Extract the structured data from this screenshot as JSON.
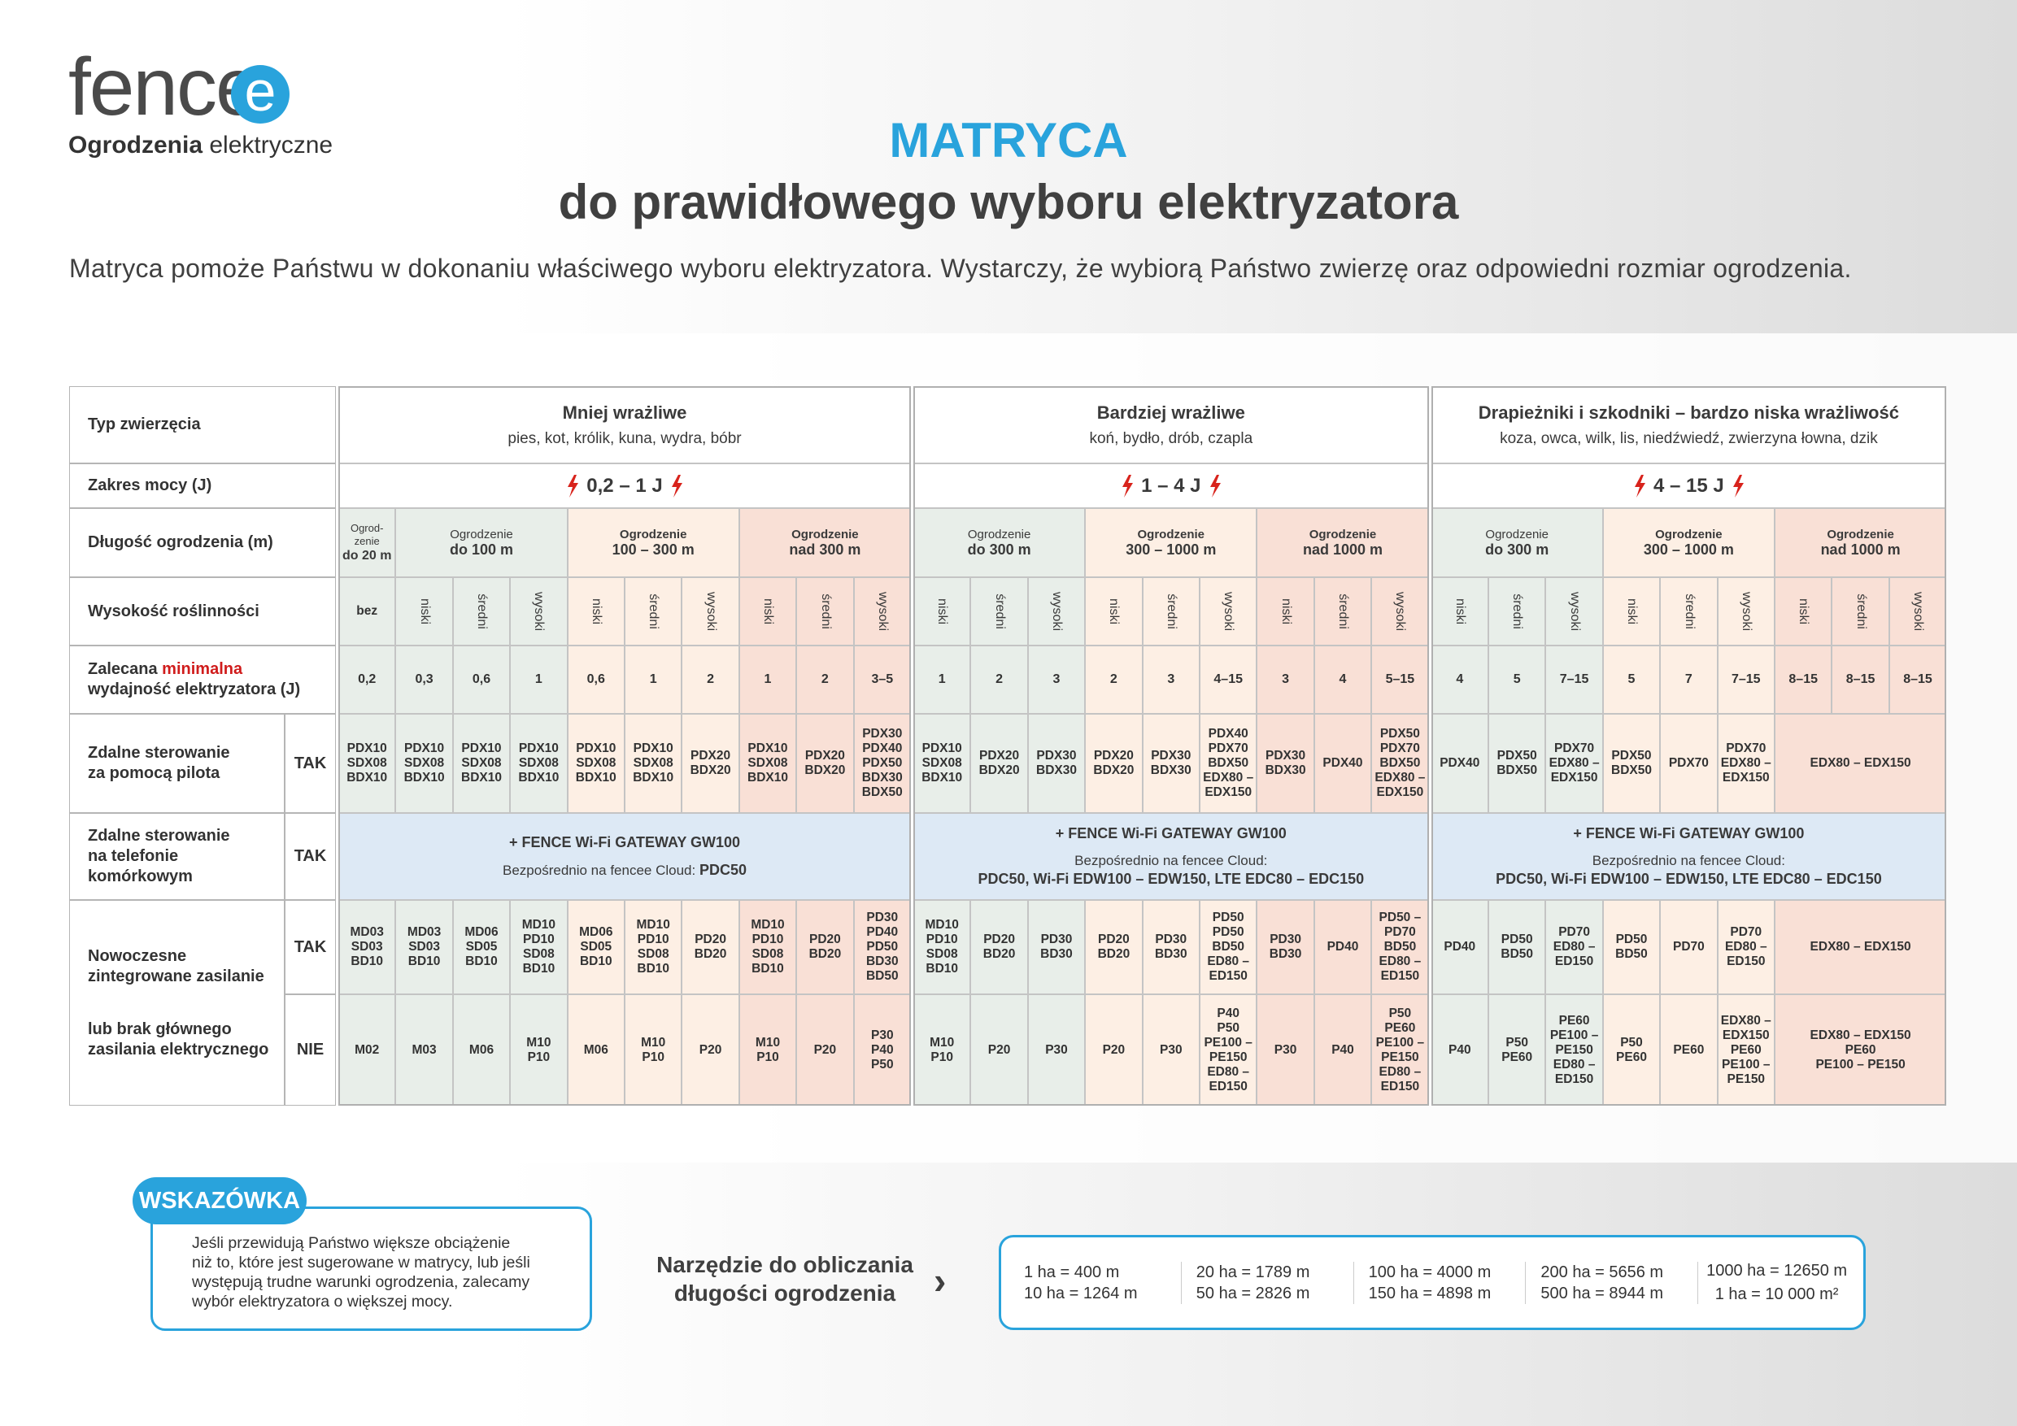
{
  "header": {
    "logo": "fence",
    "logo_mark": "e",
    "tagline_bold": "Ogrodzenia",
    "tagline": "elektryczne",
    "title": "MATRYCA",
    "subtitle": "do prawidłowego wyboru elektryzatora",
    "intro": "Matryca pomoże Państwu w dokonaniu właściwego wyboru elektryzatora. Wystarczy, że wybiorą Państwo zwierzę oraz odpowiedni rozmiar ogrodzenia."
  },
  "table": {
    "row_labels": {
      "animal": "Typ zwierzęcia",
      "power": "Zakres mocy (J)",
      "length": "Długość ogrodzenia (m)",
      "vegetation": "Wysokość roślinności",
      "min_output": {
        "before": "Zalecana",
        "highlight": "minimalna",
        "after": "wydajność elektryzatora (J)"
      },
      "remote": [
        "Zdalne sterowanie",
        "za pomocą pilota"
      ],
      "phone": [
        "Zdalne sterowanie",
        "na telefonie",
        "komórkowym"
      ],
      "mains": [
        "Nowoczesne",
        "zintegrowane zasilanie"
      ],
      "mains_alt": [
        "lub brak głównego",
        "zasilania elektrycznego"
      ],
      "yes": "TAK",
      "no": "NIE"
    },
    "groups": [
      {
        "name": "Mniej wrażliwe",
        "animals": "pies, kot, królik, kuna, wydra, bóbr",
        "power": "0,2 – 1 J",
        "lengths": [
          {
            "label": "Ogrod-zenie",
            "range": "do 20 m",
            "heights": [
              "bez"
            ]
          },
          {
            "label": "Ogrodzenie",
            "range": "do 100 m",
            "heights": [
              "niski",
              "średni",
              "wysoki"
            ]
          },
          {
            "label": "Ogrodzenie",
            "range": "100 – 300 m",
            "heights": [
              "niski",
              "średni",
              "wysoki"
            ]
          },
          {
            "label": "Ogrodzenie",
            "range": "nad 300 m",
            "heights": [
              "niski",
              "średni",
              "wysoki"
            ]
          }
        ],
        "min_output": [
          "0,2",
          "0,3",
          "0,6",
          "1",
          "0,6",
          "1",
          "2",
          "1",
          "2",
          "3–5"
        ],
        "remote": [
          [
            "PDX10",
            "SDX08",
            "BDX10"
          ],
          [
            "PDX10",
            "SDX08",
            "BDX10"
          ],
          [
            "PDX10",
            "SDX08",
            "BDX10"
          ],
          [
            "PDX10",
            "SDX08",
            "BDX10"
          ],
          [
            "PDX10",
            "SDX08",
            "BDX10"
          ],
          [
            "PDX10",
            "SDX08",
            "BDX10"
          ],
          [
            "PDX20",
            "BDX20"
          ],
          [
            "PDX10",
            "SDX08",
            "BDX10"
          ],
          [
            "PDX20",
            "BDX20"
          ],
          [
            "PDX30",
            "PDX40",
            "PDX50",
            "BDX30",
            "BDX50"
          ]
        ],
        "wifi": {
          "title": "+ FENCE Wi-Fi GATEWAY GW100",
          "note": "Bezpośrednio na fencee Cloud:",
          "models": "PDC50"
        },
        "mains_yes": [
          [
            "MD03",
            "SD03",
            "BD10"
          ],
          [
            "MD03",
            "SD03",
            "BD10"
          ],
          [
            "MD06",
            "SD05",
            "BD10"
          ],
          [
            "MD10",
            "PD10",
            "SD08",
            "BD10"
          ],
          [
            "MD06",
            "SD05",
            "BD10"
          ],
          [
            "MD10",
            "PD10",
            "SD08",
            "BD10"
          ],
          [
            "PD20",
            "BD20"
          ],
          [
            "MD10",
            "PD10",
            "SD08",
            "BD10"
          ],
          [
            "PD20",
            "BD20"
          ],
          [
            "PD30",
            "PD40",
            "PD50",
            "BD30",
            "BD50"
          ]
        ],
        "mains_no": [
          [
            "M02"
          ],
          [
            "M03"
          ],
          [
            "M06"
          ],
          [
            "M10",
            "P10"
          ],
          [
            "M06"
          ],
          [
            "M10",
            "P10"
          ],
          [
            "P20"
          ],
          [
            "M10",
            "P10"
          ],
          [
            "P20"
          ],
          [
            "P30",
            "P40",
            "P50"
          ]
        ]
      },
      {
        "name": "Bardziej wrażliwe",
        "animals": "koń, bydło, drób, czapla",
        "power": "1 – 4 J",
        "lengths": [
          {
            "label": "Ogrodzenie",
            "range": "do 300 m",
            "heights": [
              "niski",
              "średni",
              "wysoki"
            ]
          },
          {
            "label": "Ogrodzenie",
            "range": "300 – 1000 m",
            "heights": [
              "niski",
              "średni",
              "wysoki"
            ]
          },
          {
            "label": "Ogrodzenie",
            "range": "nad 1000 m",
            "heights": [
              "niski",
              "średni",
              "wysoki"
            ]
          }
        ],
        "min_output": [
          "1",
          "2",
          "3",
          "2",
          "3",
          "4–15",
          "3",
          "4",
          "5–15"
        ],
        "remote": [
          [
            "PDX10",
            "SDX08",
            "BDX10"
          ],
          [
            "PDX20",
            "BDX20"
          ],
          [
            "PDX30",
            "BDX30"
          ],
          [
            "PDX20",
            "BDX20"
          ],
          [
            "PDX30",
            "BDX30"
          ],
          [
            "PDX40",
            "PDX70",
            "BDX50",
            "EDX80 – EDX150"
          ],
          [
            "PDX30",
            "BDX30"
          ],
          [
            "PDX40"
          ],
          [
            "PDX50",
            "PDX70",
            "BDX50",
            "EDX80 – EDX150"
          ]
        ],
        "wifi": {
          "title": "+ FENCE Wi-Fi GATEWAY GW100",
          "note": "Bezpośrednio na fencee Cloud:",
          "models": "PDC50, Wi-Fi EDW100 – EDW150, LTE EDC80 – EDC150"
        },
        "mains_yes": [
          [
            "MD10",
            "PD10",
            "SD08",
            "BD10"
          ],
          [
            "PD20",
            "BD20"
          ],
          [
            "PD30",
            "BD30"
          ],
          [
            "PD20",
            "BD20"
          ],
          [
            "PD30",
            "BD30"
          ],
          [
            "PD50",
            "PD50",
            "BD50",
            "ED80 – ED150"
          ],
          [
            "PD30",
            "BD30"
          ],
          [
            "PD40"
          ],
          [
            "PD50 – PD70",
            "BD50",
            "ED80 – ED150"
          ]
        ],
        "mains_no": [
          [
            "M10",
            "P10"
          ],
          [
            "P20"
          ],
          [
            "P30"
          ],
          [
            "P20"
          ],
          [
            "P30"
          ],
          [
            "P40",
            "P50",
            "PE100 – PE150",
            "ED80 – ED150"
          ],
          [
            "P30"
          ],
          [
            "P40"
          ],
          [
            "P50",
            "PE60",
            "PE100 – PE150",
            "ED80 – ED150"
          ]
        ]
      },
      {
        "name": "Drapieżniki i szkodniki – bardzo niska wrażliwość",
        "animals": "koza, owca, wilk, lis, niedźwiedź, zwierzyna łowna, dzik",
        "power": "4 – 15 J",
        "lengths": [
          {
            "label": "Ogrodzenie",
            "range": "do 300 m",
            "heights": [
              "niski",
              "średni",
              "wysoki"
            ]
          },
          {
            "label": "Ogrodzenie",
            "range": "300 – 1000 m",
            "heights": [
              "niski",
              "średni",
              "wysoki"
            ]
          },
          {
            "label": "Ogrodzenie",
            "range": "nad 1000 m",
            "heights": [
              "niski",
              "średni",
              "wysoki"
            ]
          }
        ],
        "min_output": [
          "4",
          "5",
          "7–15",
          "5",
          "7",
          "7–15",
          "8–15",
          "8–15",
          "8–15"
        ],
        "remote": [
          [
            "PDX40"
          ],
          [
            "PDX50",
            "BDX50"
          ],
          [
            "PDX70",
            "EDX80 – EDX150"
          ],
          [
            "PDX50",
            "BDX50"
          ],
          [
            "PDX70"
          ],
          [
            "PDX70",
            "EDX80 – EDX150"
          ],
          [
            "EDX80 – EDX150"
          ]
        ],
        "wifi": {
          "title": "+ FENCE Wi-Fi GATEWAY GW100",
          "note": "Bezpośrednio na fencee Cloud:",
          "models": "PDC50, Wi-Fi EDW100 – EDW150, LTE EDC80 – EDC150"
        },
        "mains_yes": [
          [
            "PD40"
          ],
          [
            "PD50",
            "BD50"
          ],
          [
            "PD70",
            "ED80 – ED150"
          ],
          [
            "PD50",
            "BD50"
          ],
          [
            "PD70"
          ],
          [
            "PD70",
            "ED80 – ED150"
          ],
          [
            "EDX80 – EDX150"
          ]
        ],
        "mains_no": [
          [
            "P40"
          ],
          [
            "P50",
            "PE60"
          ],
          [
            "PE60",
            "PE100 – PE150",
            "ED80 – ED150"
          ],
          [
            "P50",
            "PE60"
          ],
          [
            "PE60"
          ],
          [
            "EDX80 – EDX150",
            "PE60",
            "PE100 – PE150"
          ],
          [
            "EDX80 – EDX150",
            "PE60",
            "PE100 – PE150"
          ]
        ]
      }
    ]
  },
  "tip": {
    "badge": "WSKAZÓWKA",
    "lines": [
      "Jeśli przewidują Państwo większe obciążenie",
      "niż to, które jest sugerowane w matrycy, lub jeśli",
      "występują trudne warunki ogrodzenia, zalecamy",
      "wybór elektryzatora o większej mocy."
    ]
  },
  "tool": {
    "lines": [
      "Narzędzie do obliczania",
      "długości ogrodzenia"
    ],
    "arrow": "›"
  },
  "conversions": [
    [
      "1 ha = 400 m",
      "10 ha = 1264 m"
    ],
    [
      "20 ha = 1789 m",
      "50 ha = 2826 m"
    ],
    [
      "100 ha = 4000 m",
      "150 ha = 4898 m"
    ],
    [
      "200 ha = 5656 m",
      "500 ha = 8944 m"
    ],
    [
      "1000 ha = 12650 m",
      "1 ha = 10 000 m²"
    ]
  ]
}
